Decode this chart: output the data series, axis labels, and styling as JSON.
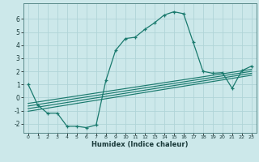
{
  "title": "",
  "xlabel": "Humidex (Indice chaleur)",
  "bg_color": "#cce8ea",
  "grid_color": "#b0d4d8",
  "line_color": "#1a7a6e",
  "xlim": [
    -0.5,
    23.5
  ],
  "ylim": [
    -2.7,
    7.2
  ],
  "xticks": [
    0,
    1,
    2,
    3,
    4,
    5,
    6,
    7,
    8,
    9,
    10,
    11,
    12,
    13,
    14,
    15,
    16,
    17,
    18,
    19,
    20,
    21,
    22,
    23
  ],
  "yticks": [
    -2,
    -1,
    0,
    1,
    2,
    3,
    4,
    5,
    6
  ],
  "main_x": [
    0,
    1,
    2,
    3,
    4,
    5,
    6,
    7,
    8,
    9,
    10,
    11,
    12,
    13,
    14,
    15,
    16,
    17,
    18,
    19,
    20,
    21,
    22,
    23
  ],
  "main_y": [
    1.0,
    -0.6,
    -1.2,
    -1.2,
    -2.2,
    -2.2,
    -2.3,
    -2.1,
    1.3,
    3.6,
    4.5,
    4.6,
    5.2,
    5.7,
    6.3,
    6.55,
    6.4,
    4.2,
    2.0,
    1.85,
    1.9,
    0.7,
    2.05,
    2.4
  ],
  "line1_x": [
    0,
    23
  ],
  "line1_y": [
    -1.05,
    1.7
  ],
  "line2_x": [
    0,
    23
  ],
  "line2_y": [
    -0.85,
    1.85
  ],
  "line3_x": [
    0,
    23
  ],
  "line3_y": [
    -0.65,
    2.0
  ],
  "line4_x": [
    0,
    23
  ],
  "line4_y": [
    -0.45,
    2.15
  ]
}
